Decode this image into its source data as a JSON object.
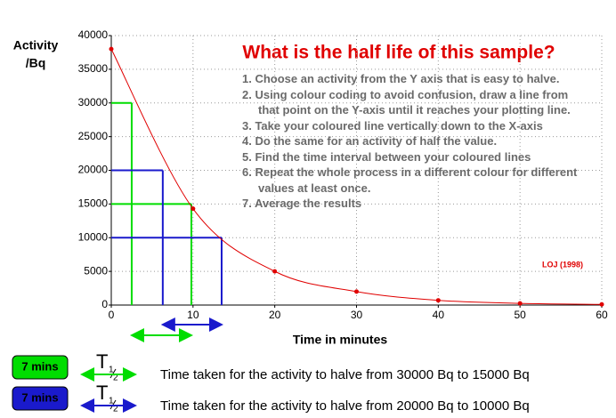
{
  "chart_data": {
    "type": "line",
    "title": "What is the half life of this sample?",
    "y_label_lines": [
      "Activity",
      "/Bq"
    ],
    "x_label": "Time in minutes",
    "x": [
      0,
      10,
      20,
      30,
      40,
      50,
      60
    ],
    "series": [
      {
        "name": "Activity",
        "color": "#e00000",
        "values": [
          38000,
          14300,
          5000,
          2000,
          700,
          250,
          100
        ]
      }
    ],
    "xlim": [
      0,
      60
    ],
    "xticks": [
      0,
      10,
      20,
      30,
      40,
      50,
      60
    ],
    "ylim": [
      0,
      40000
    ],
    "yticks": [
      0,
      5000,
      10000,
      15000,
      20000,
      25000,
      30000,
      35000,
      40000
    ],
    "grid": true,
    "instructions": [
      "1. Choose an activity from the Y axis that is easy to halve.",
      "2. Using colour coding to avoid confusion, draw a line from that point on the Y-axis until it reaches your plotting line.",
      "3. Take your coloured line vertically down to the X-axis",
      "4. Do the same for an activity of half the value.",
      "5. Find the time interval between your coloured lines",
      "6. Repeat the whole process in a different colour for different values at least once.",
      "7. Average the results"
    ],
    "credit": "LOJ (1998)",
    "half_life_symbol": {
      "letter": "T",
      "numerator": "1",
      "denominator": "2"
    },
    "readings": [
      {
        "color": "#00dd00",
        "y1": 30000,
        "x1": 2.5,
        "y2": 15000,
        "x2": 9.8,
        "result": "7 mins",
        "description": "Time taken for the activity to halve from 30000 Bq to 15000 Bq"
      },
      {
        "color": "#1a1acc",
        "y1": 20000,
        "x1": 6.3,
        "y2": 10000,
        "x2": 13.5,
        "result": "7 mins",
        "description": "Time taken for the activity to halve from 20000 Bq to 10000 Bq"
      }
    ]
  }
}
